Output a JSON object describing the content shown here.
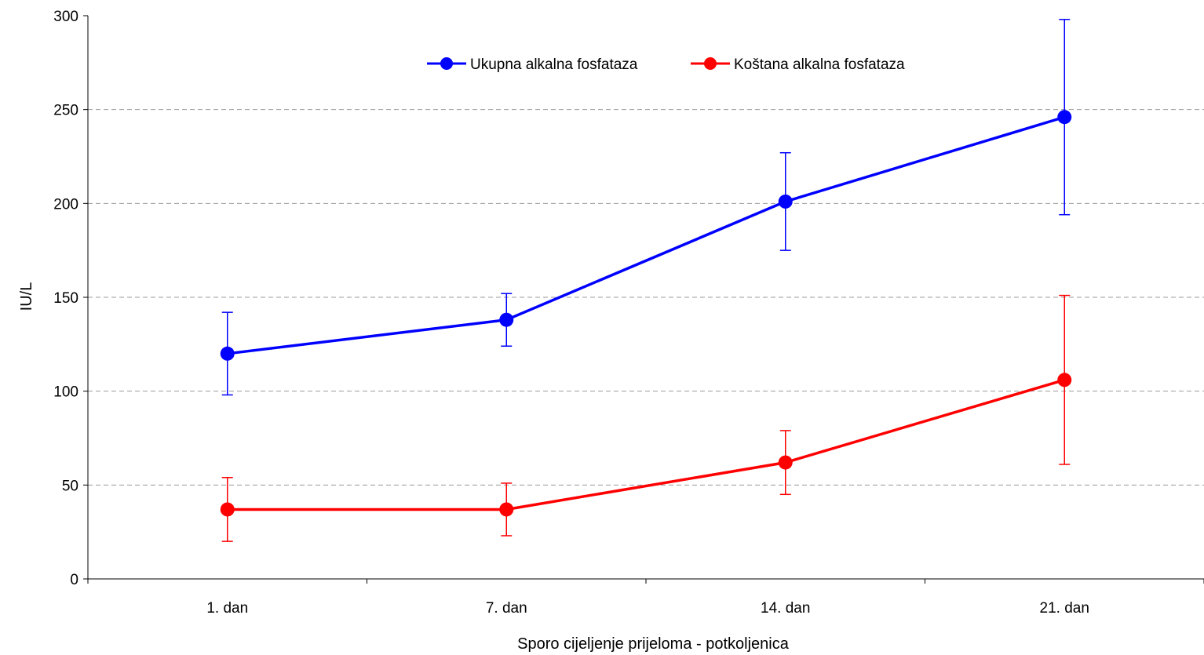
{
  "chart_data": {
    "type": "line",
    "title": "",
    "xlabel": "Sporo cijeljenje prijeloma - potkoljenica",
    "ylabel": "IU/L",
    "categories": [
      "1. dan",
      "7. dan",
      "14. dan",
      "21. dan"
    ],
    "ylim": [
      0,
      300
    ],
    "yticks": [
      0,
      50,
      100,
      150,
      200,
      250,
      300
    ],
    "grid": "horizontal-dashed",
    "legend_position": "top-center",
    "series": [
      {
        "name": "Ukupna alkalna fosfataza",
        "color": "#0000ff",
        "values": [
          120,
          138,
          201,
          246
        ],
        "error_low": [
          98,
          124,
          175,
          194
        ],
        "error_high": [
          142,
          152,
          227,
          298
        ]
      },
      {
        "name": "Koštana alkalna fosfataza",
        "color": "#ff0000",
        "values": [
          37,
          37,
          62,
          106
        ],
        "error_low": [
          20,
          23,
          45,
          61
        ],
        "error_high": [
          54,
          51,
          79,
          151
        ]
      }
    ]
  }
}
